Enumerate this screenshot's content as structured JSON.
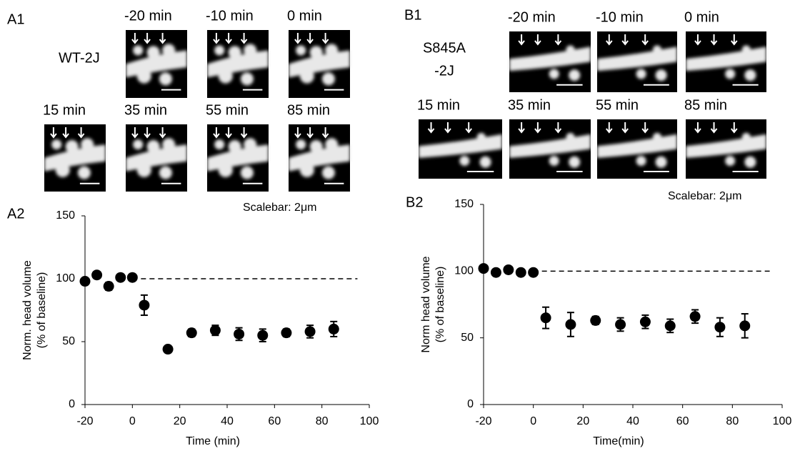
{
  "figure": {
    "A1": {
      "label": "A1",
      "sample": [
        "WT-2J"
      ],
      "times": [
        "-20 min",
        "-10 min",
        "0 min",
        "15 min",
        "35 min",
        "55 min",
        "85 min"
      ],
      "scalebar": "Scalebar:  2μm"
    },
    "B1": {
      "label": "B1",
      "sample": [
        "S845A",
        "-2J"
      ],
      "times": [
        "-20 min",
        "-10 min",
        "0 min",
        "15 min",
        "35 min",
        "55 min",
        "85 min"
      ],
      "scalebar": "Scalebar:  2μm"
    }
  },
  "chart_data": [
    {
      "type": "scatter",
      "panel": "A2",
      "xlabel": "Time (min)",
      "ylabel": [
        "Norm. head volume",
        "(% of baseline)"
      ],
      "x": [
        -20,
        -15,
        -10,
        -5,
        0,
        5,
        15,
        25,
        35,
        45,
        55,
        65,
        75,
        85
      ],
      "values": [
        98,
        103,
        94,
        101,
        101,
        79,
        44,
        57,
        59,
        56,
        55,
        57,
        58,
        60
      ],
      "errors": [
        2,
        2,
        3,
        2,
        2,
        8,
        2,
        3,
        4,
        5,
        5,
        3,
        5,
        6
      ],
      "color": "#000000",
      "reference_line": {
        "y": 100,
        "x": [
          0,
          95
        ]
      },
      "xlim": [
        -20,
        100
      ],
      "ylim": [
        0,
        150
      ],
      "xticks": [
        -20,
        0,
        20,
        40,
        60,
        80,
        100
      ],
      "yticks": [
        0,
        50,
        100,
        150
      ]
    },
    {
      "type": "scatter",
      "panel": "B2",
      "xlabel": "Time(min)",
      "ylabel": [
        "Norm head volume",
        "(% of baseline)"
      ],
      "x": [
        -20,
        -15,
        -10,
        -5,
        0,
        5,
        15,
        25,
        35,
        45,
        55,
        65,
        75,
        85
      ],
      "values": [
        102,
        99,
        101,
        99,
        99,
        65,
        60,
        63,
        60,
        62,
        59,
        66,
        58,
        59
      ],
      "errors": [
        2,
        2,
        2,
        2,
        2,
        8,
        9,
        3,
        5,
        5,
        5,
        5,
        7,
        9
      ],
      "color": "#000000",
      "reference_line": {
        "y": 100,
        "x": [
          0,
          95
        ]
      },
      "xlim": [
        -20,
        100
      ],
      "ylim": [
        0,
        150
      ],
      "xticks": [
        -20,
        0,
        20,
        40,
        60,
        80,
        100
      ],
      "yticks": [
        0,
        50,
        100,
        150
      ]
    }
  ]
}
